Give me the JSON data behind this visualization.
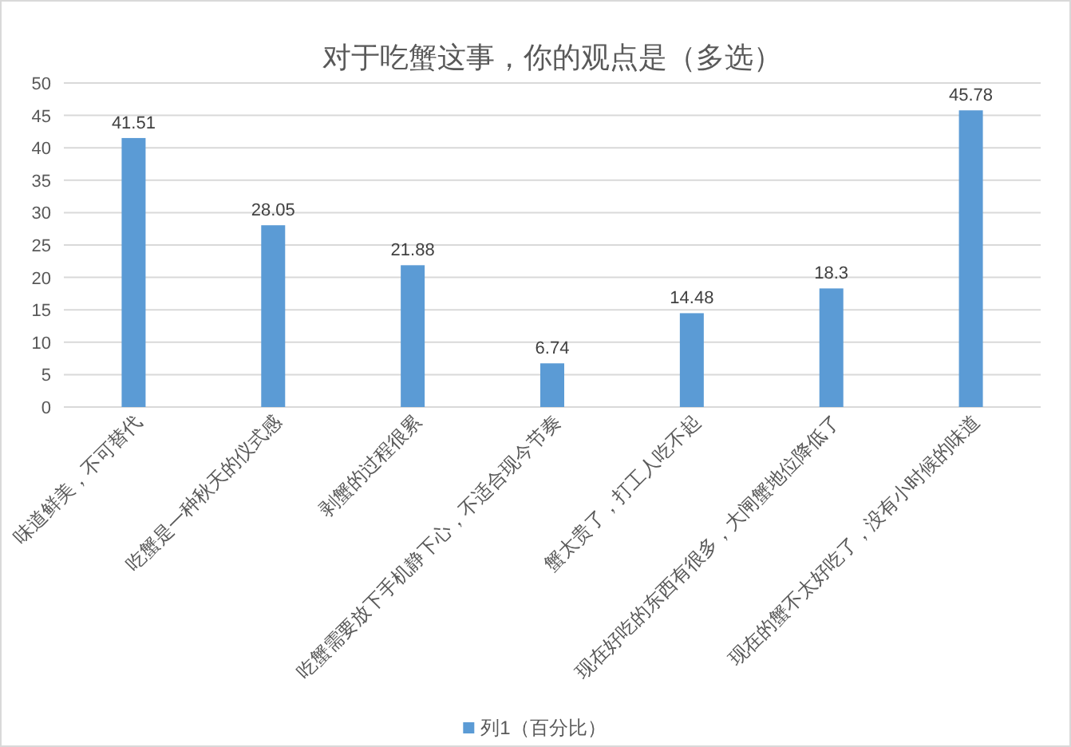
{
  "chart_data": {
    "type": "bar",
    "title": "对于吃蟹这事，你的观点是（多选）",
    "categories": [
      "味道鲜美，不可替代",
      "吃蟹是一种秋天的仪式感",
      "剥蟹的过程很累",
      "吃蟹需要放下手机静下心，不适合现今节奏",
      "蟹太贵了，打工人吃不起",
      "现在好吃的东西有很多，大闸蟹地位降低了",
      "现在的蟹不太好吃了，没有小时候的味道"
    ],
    "series": [
      {
        "name": "列1（百分比）",
        "color": "#5b9bd5",
        "values": [
          41.51,
          28.05,
          21.88,
          6.74,
          14.48,
          18.3,
          45.78
        ]
      }
    ],
    "ylim": [
      0,
      50
    ],
    "yticks": [
      0,
      5,
      10,
      15,
      20,
      25,
      30,
      35,
      40,
      45,
      50
    ],
    "grid": "y",
    "data_labels": true,
    "legend": "bottom"
  }
}
